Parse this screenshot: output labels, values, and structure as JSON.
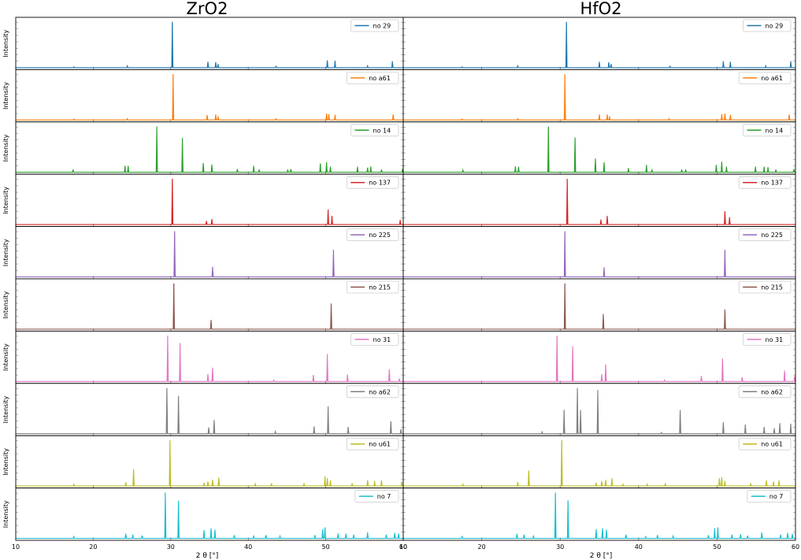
{
  "figure": {
    "x_axis_label": "2 θ [°]",
    "y_axis_label": "Intensity",
    "x_ticks": [
      "10",
      "20",
      "30",
      "40",
      "50",
      "60"
    ]
  },
  "chart_data": [
    {
      "type": "line",
      "title": "ZrO2",
      "xlabel": "2 θ [°]",
      "ylabel": "Intensity",
      "xlim": [
        10,
        60
      ],
      "legend_position": "top-right",
      "series": [
        {
          "name": "no 29",
          "color": "#1f77b4",
          "peaks": [
            [
              17.5,
              0.02
            ],
            [
              24.4,
              0.04
            ],
            [
              30.2,
              1.0
            ],
            [
              34.8,
              0.13
            ],
            [
              35.8,
              0.12
            ],
            [
              36.1,
              0.08
            ],
            [
              43.6,
              0.03
            ],
            [
              50.2,
              0.16
            ],
            [
              51.2,
              0.15
            ],
            [
              55.4,
              0.04
            ],
            [
              58.6,
              0.14
            ]
          ]
        },
        {
          "name": "no a61",
          "color": "#ff7f0e",
          "peaks": [
            [
              17.5,
              0.02
            ],
            [
              24.4,
              0.03
            ],
            [
              30.3,
              1.0
            ],
            [
              34.7,
              0.11
            ],
            [
              35.8,
              0.12
            ],
            [
              36.1,
              0.08
            ],
            [
              43.6,
              0.03
            ],
            [
              50.1,
              0.14
            ],
            [
              50.4,
              0.13
            ],
            [
              51.2,
              0.11
            ],
            [
              58.7,
              0.12
            ]
          ]
        },
        {
          "name": "no 14",
          "color": "#2ca02c",
          "peaks": [
            [
              17.4,
              0.06
            ],
            [
              24.1,
              0.14
            ],
            [
              24.5,
              0.14
            ],
            [
              28.2,
              1.0
            ],
            [
              31.5,
              0.75
            ],
            [
              34.2,
              0.2
            ],
            [
              35.3,
              0.17
            ],
            [
              38.6,
              0.07
            ],
            [
              40.7,
              0.14
            ],
            [
              41.4,
              0.06
            ],
            [
              45.1,
              0.06
            ],
            [
              45.5,
              0.07
            ],
            [
              49.3,
              0.19
            ],
            [
              50.1,
              0.22
            ],
            [
              50.6,
              0.12
            ],
            [
              54.1,
              0.12
            ],
            [
              55.4,
              0.1
            ],
            [
              55.8,
              0.12
            ],
            [
              57.2,
              0.06
            ],
            [
              59.9,
              0.07
            ]
          ]
        },
        {
          "name": "no 137",
          "color": "#d62728",
          "peaks": [
            [
              30.2,
              1.0
            ],
            [
              34.6,
              0.08
            ],
            [
              35.3,
              0.12
            ],
            [
              50.3,
              0.33
            ],
            [
              50.8,
              0.19
            ],
            [
              59.6,
              0.1
            ]
          ]
        },
        {
          "name": "no 225",
          "color": "#9467bd",
          "peaks": [
            [
              30.5,
              1.0
            ],
            [
              35.4,
              0.22
            ],
            [
              51.0,
              0.59
            ]
          ]
        },
        {
          "name": "no 215",
          "color": "#8c564b",
          "peaks": [
            [
              30.4,
              1.0
            ],
            [
              35.2,
              0.2
            ],
            [
              50.7,
              0.56
            ]
          ]
        },
        {
          "name": "no 31",
          "color": "#e377c2",
          "peaks": [
            [
              29.6,
              1.0
            ],
            [
              31.2,
              0.84
            ],
            [
              34.8,
              0.16
            ],
            [
              35.4,
              0.3
            ],
            [
              43.3,
              0.03
            ],
            [
              48.4,
              0.14
            ],
            [
              50.2,
              0.6
            ],
            [
              52.8,
              0.15
            ],
            [
              58.2,
              0.26
            ],
            [
              59.5,
              0.06
            ]
          ]
        },
        {
          "name": "no a62",
          "color": "#7f7f7f",
          "peaks": [
            [
              29.5,
              1.0
            ],
            [
              31.0,
              0.83
            ],
            [
              34.9,
              0.14
            ],
            [
              35.6,
              0.3
            ],
            [
              43.5,
              0.05
            ],
            [
              48.5,
              0.16
            ],
            [
              50.3,
              0.6
            ],
            [
              52.9,
              0.15
            ],
            [
              58.4,
              0.27
            ],
            [
              59.7,
              0.1
            ]
          ]
        },
        {
          "name": "no u61",
          "color": "#bcbd22",
          "peaks": [
            [
              17.5,
              0.04
            ],
            [
              24.2,
              0.08
            ],
            [
              25.2,
              0.37
            ],
            [
              29.9,
              1.0
            ],
            [
              34.3,
              0.07
            ],
            [
              34.8,
              0.1
            ],
            [
              35.4,
              0.14
            ],
            [
              36.2,
              0.18
            ],
            [
              40.9,
              0.05
            ],
            [
              43.0,
              0.06
            ],
            [
              47.2,
              0.06
            ],
            [
              49.9,
              0.21
            ],
            [
              50.2,
              0.17
            ],
            [
              50.6,
              0.12
            ],
            [
              53.4,
              0.06
            ],
            [
              55.4,
              0.13
            ],
            [
              56.3,
              0.11
            ],
            [
              57.2,
              0.12
            ],
            [
              59.8,
              0.1
            ]
          ]
        },
        {
          "name": "no 7",
          "color": "#17becf",
          "peaks": [
            [
              17.5,
              0.04
            ],
            [
              24.2,
              0.1
            ],
            [
              25.1,
              0.08
            ],
            [
              26.3,
              0.06
            ],
            [
              29.3,
              1.0
            ],
            [
              31.0,
              0.82
            ],
            [
              34.3,
              0.18
            ],
            [
              35.2,
              0.22
            ],
            [
              35.7,
              0.19
            ],
            [
              38.2,
              0.07
            ],
            [
              40.7,
              0.05
            ],
            [
              42.3,
              0.07
            ],
            [
              44.1,
              0.05
            ],
            [
              48.6,
              0.07
            ],
            [
              49.6,
              0.2
            ],
            [
              49.9,
              0.24
            ],
            [
              51.6,
              0.1
            ],
            [
              52.6,
              0.1
            ],
            [
              53.6,
              0.08
            ],
            [
              55.4,
              0.13
            ],
            [
              57.8,
              0.08
            ],
            [
              58.9,
              0.12
            ],
            [
              59.4,
              0.1
            ]
          ]
        }
      ]
    },
    {
      "type": "line",
      "title": "HfO2",
      "xlabel": "2 θ [°]",
      "ylabel": "",
      "xlim": [
        10,
        60
      ],
      "legend_position": "top-right",
      "series": [
        {
          "name": "no 29",
          "color": "#1f77b4",
          "peaks": [
            [
              17.5,
              0.02
            ],
            [
              24.6,
              0.04
            ],
            [
              30.8,
              1.0
            ],
            [
              35.0,
              0.13
            ],
            [
              36.2,
              0.12
            ],
            [
              36.5,
              0.08
            ],
            [
              44.0,
              0.03
            ],
            [
              50.8,
              0.14
            ],
            [
              51.7,
              0.13
            ],
            [
              56.2,
              0.04
            ],
            [
              59.4,
              0.14
            ]
          ]
        },
        {
          "name": "no a61",
          "color": "#ff7f0e",
          "peaks": [
            [
              17.5,
              0.02
            ],
            [
              24.6,
              0.03
            ],
            [
              30.6,
              1.0
            ],
            [
              35.0,
              0.12
            ],
            [
              36.0,
              0.12
            ],
            [
              36.3,
              0.08
            ],
            [
              43.9,
              0.03
            ],
            [
              50.6,
              0.13
            ],
            [
              51.0,
              0.14
            ],
            [
              51.7,
              0.11
            ],
            [
              59.2,
              0.12
            ]
          ]
        },
        {
          "name": "no 14",
          "color": "#2ca02c",
          "peaks": [
            [
              17.6,
              0.05
            ],
            [
              24.3,
              0.13
            ],
            [
              24.7,
              0.12
            ],
            [
              28.5,
              1.0
            ],
            [
              31.9,
              0.76
            ],
            [
              34.5,
              0.3
            ],
            [
              35.6,
              0.22
            ],
            [
              38.7,
              0.09
            ],
            [
              41.0,
              0.16
            ],
            [
              41.7,
              0.05
            ],
            [
              45.5,
              0.06
            ],
            [
              46.0,
              0.06
            ],
            [
              49.9,
              0.16
            ],
            [
              50.6,
              0.23
            ],
            [
              51.2,
              0.12
            ],
            [
              54.9,
              0.12
            ],
            [
              56.0,
              0.12
            ],
            [
              56.5,
              0.11
            ],
            [
              57.5,
              0.06
            ],
            [
              59.8,
              0.07
            ]
          ]
        },
        {
          "name": "no 137",
          "color": "#d62728",
          "peaks": [
            [
              30.9,
              1.0
            ],
            [
              35.2,
              0.11
            ],
            [
              36.0,
              0.19
            ],
            [
              51.0,
              0.29
            ],
            [
              51.6,
              0.16
            ]
          ]
        },
        {
          "name": "no 225",
          "color": "#9467bd",
          "peaks": [
            [
              30.6,
              1.0
            ],
            [
              35.6,
              0.21
            ],
            [
              51.0,
              0.59
            ]
          ]
        },
        {
          "name": "no 215",
          "color": "#8c564b",
          "peaks": [
            [
              30.6,
              1.0
            ],
            [
              35.5,
              0.33
            ],
            [
              51.0,
              0.43
            ]
          ]
        },
        {
          "name": "no 31",
          "color": "#e377c2",
          "peaks": [
            [
              29.6,
              1.0
            ],
            [
              31.6,
              0.77
            ],
            [
              35.3,
              0.16
            ],
            [
              35.8,
              0.37
            ],
            [
              43.3,
              0.03
            ],
            [
              48.0,
              0.12
            ],
            [
              50.7,
              0.5
            ],
            [
              53.2,
              0.09
            ],
            [
              58.6,
              0.24
            ],
            [
              59.9,
              0.11
            ]
          ]
        },
        {
          "name": "no a62",
          "color": "#7f7f7f",
          "peaks": [
            [
              27.7,
              0.04
            ],
            [
              30.5,
              0.52
            ],
            [
              32.2,
              1.0
            ],
            [
              32.6,
              0.52
            ],
            [
              34.8,
              0.96
            ],
            [
              42.9,
              0.03
            ],
            [
              45.3,
              0.52
            ],
            [
              50.8,
              0.25
            ],
            [
              53.6,
              0.2
            ],
            [
              56.0,
              0.15
            ],
            [
              57.3,
              0.12
            ],
            [
              58.0,
              0.23
            ],
            [
              59.4,
              0.22
            ]
          ]
        },
        {
          "name": "no u61",
          "color": "#bcbd22",
          "peaks": [
            [
              17.6,
              0.04
            ],
            [
              24.6,
              0.09
            ],
            [
              26.0,
              0.34
            ],
            [
              30.2,
              1.0
            ],
            [
              34.6,
              0.07
            ],
            [
              35.3,
              0.11
            ],
            [
              35.8,
              0.14
            ],
            [
              36.6,
              0.17
            ],
            [
              38.0,
              0.04
            ],
            [
              41.1,
              0.04
            ],
            [
              43.4,
              0.06
            ],
            [
              50.3,
              0.17
            ],
            [
              50.6,
              0.2
            ],
            [
              51.0,
              0.11
            ],
            [
              54.3,
              0.06
            ],
            [
              56.3,
              0.12
            ],
            [
              57.2,
              0.1
            ],
            [
              57.9,
              0.12
            ]
          ]
        },
        {
          "name": "no 7",
          "color": "#17becf",
          "peaks": [
            [
              17.5,
              0.04
            ],
            [
              24.5,
              0.1
            ],
            [
              25.4,
              0.08
            ],
            [
              26.6,
              0.05
            ],
            [
              29.4,
              1.0
            ],
            [
              31.0,
              0.83
            ],
            [
              34.6,
              0.2
            ],
            [
              35.4,
              0.22
            ],
            [
              35.9,
              0.19
            ],
            [
              38.4,
              0.08
            ],
            [
              40.9,
              0.04
            ],
            [
              42.4,
              0.07
            ],
            [
              44.4,
              0.05
            ],
            [
              48.9,
              0.07
            ],
            [
              49.7,
              0.22
            ],
            [
              50.1,
              0.24
            ],
            [
              51.9,
              0.08
            ],
            [
              53.0,
              0.09
            ],
            [
              53.9,
              0.06
            ],
            [
              55.7,
              0.13
            ],
            [
              58.1,
              0.08
            ],
            [
              59.0,
              0.12
            ],
            [
              59.6,
              0.1
            ]
          ]
        }
      ]
    }
  ]
}
